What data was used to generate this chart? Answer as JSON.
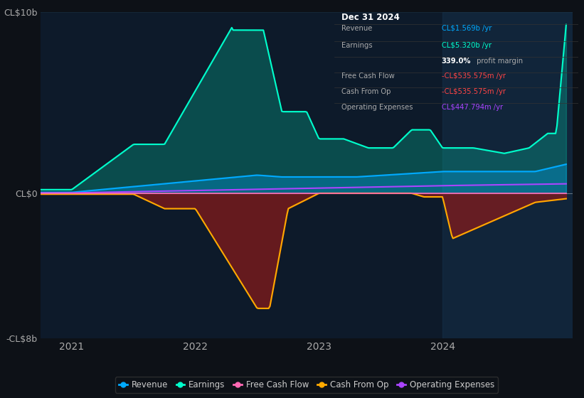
{
  "bg_color": "#0d1117",
  "plot_bg_color": "#0d1a2a",
  "grid_color": "#1e3a4a",
  "title_box_bg": "#000000",
  "title_box_border": "#333333",
  "ylim": [
    -8000000000,
    10000000000
  ],
  "ytick_labels": [
    "-CL$8b",
    "CL$0",
    "CL$10b"
  ],
  "ytick_vals": [
    -8000000000,
    0,
    10000000000
  ],
  "xlabel_ticks": [
    2021,
    2022,
    2023,
    2024
  ],
  "series": {
    "earnings": {
      "color": "#00ffcc",
      "fill_color": "#00ffcc",
      "fill_alpha": 0.22,
      "label": "Earnings"
    },
    "revenue": {
      "color": "#00aaff",
      "fill_color": "#00aaff",
      "fill_alpha": 0.3,
      "label": "Revenue"
    },
    "free_cash_flow": {
      "color": "#ff69b4",
      "label": "Free Cash Flow"
    },
    "cash_from_op": {
      "color": "#ffaa00",
      "fill_color": "#8b1a1a",
      "fill_alpha": 0.7,
      "label": "Cash From Op"
    },
    "operating_expenses": {
      "color": "#aa44ff",
      "label": "Operating Expenses"
    }
  },
  "legend": [
    {
      "label": "Revenue",
      "color": "#00aaff"
    },
    {
      "label": "Earnings",
      "color": "#00ffcc"
    },
    {
      "label": "Free Cash Flow",
      "color": "#ff69b4"
    },
    {
      "label": "Cash From Op",
      "color": "#ffaa00"
    },
    {
      "label": "Operating Expenses",
      "color": "#aa44ff"
    }
  ],
  "table_date": "Dec 31 2024",
  "table_rows": [
    {
      "label": "Revenue",
      "value": "CL$1.569b /yr",
      "value_color": "#00aaff"
    },
    {
      "label": "Earnings",
      "value": "CL$5.320b /yr",
      "value_color": "#00ffcc"
    },
    {
      "label": "",
      "bold": "339.0%",
      "rest": " profit margin",
      "value_color": "#ffffff"
    },
    {
      "label": "Free Cash Flow",
      "value": "-CL$535.575m /yr",
      "value_color": "#ff4444"
    },
    {
      "label": "Cash From Op",
      "value": "-CL$535.575m /yr",
      "value_color": "#ff4444"
    },
    {
      "label": "Operating Expenses",
      "value": "CL$447.794m /yr",
      "value_color": "#aa44ff"
    }
  ]
}
